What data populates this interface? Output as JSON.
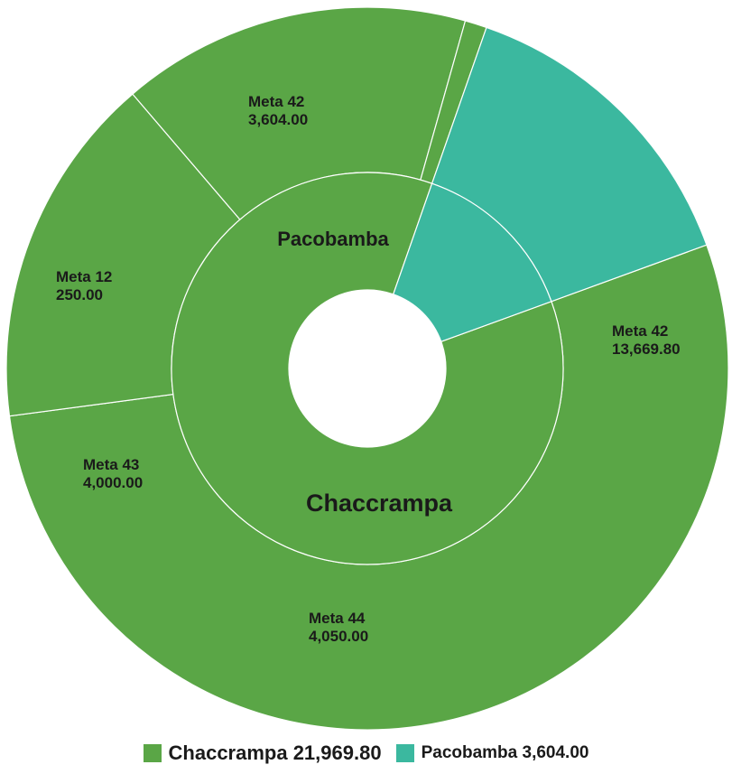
{
  "chart_data": {
    "type": "sunburst",
    "inner": [
      {
        "name": "Chaccrampa",
        "value": 21969.8,
        "color": "#5aa646"
      },
      {
        "name": "Pacobamba",
        "value": 3604.0,
        "color": "#3bb89f"
      }
    ],
    "outer": [
      {
        "parent": "Pacobamba",
        "name": "Meta 42",
        "value": 3604.0,
        "value_label": "3,604.00",
        "color": "#3bb89f"
      },
      {
        "parent": "Chaccrampa",
        "name": "Meta 42",
        "value": 13669.8,
        "value_label": "13,669.80",
        "color": "#5aa646"
      },
      {
        "parent": "Chaccrampa",
        "name": "Meta 44",
        "value": 4050.0,
        "value_label": "4,050.00",
        "color": "#5aa646"
      },
      {
        "parent": "Chaccrampa",
        "name": "Meta 43",
        "value": 4000.0,
        "value_label": "4,000.00",
        "color": "#5aa646"
      },
      {
        "parent": "Chaccrampa",
        "name": "Meta 12",
        "value": 250.0,
        "value_label": "250.00",
        "color": "#5aa646"
      }
    ]
  },
  "legend": [
    {
      "label": "Chaccrampa 21,969.80",
      "color": "#5aa646"
    },
    {
      "label": "Pacobamba 3,604.00",
      "color": "#3bb89f"
    }
  ]
}
